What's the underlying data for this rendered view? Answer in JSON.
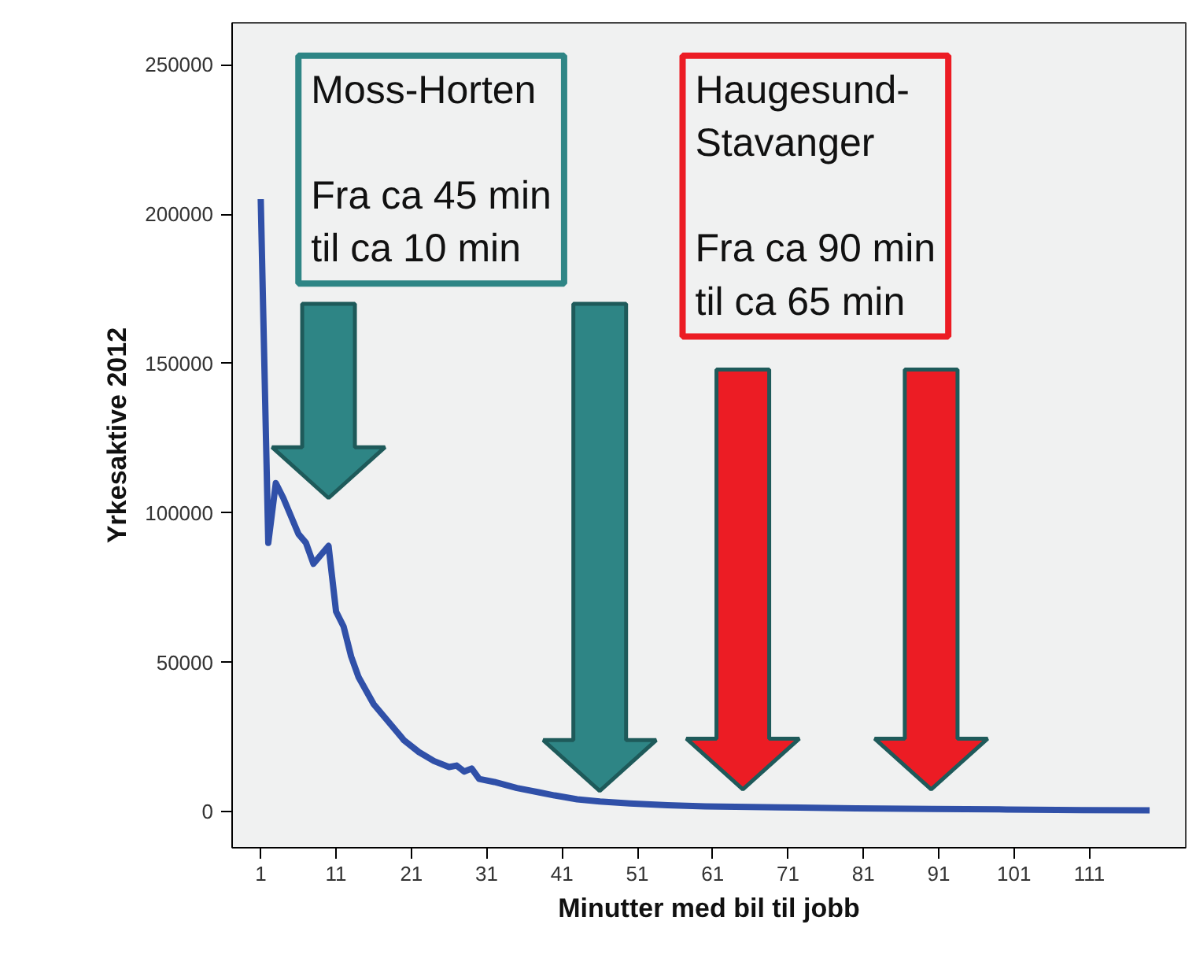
{
  "chart_data": {
    "type": "line",
    "xlabel": "Minutter med bil til jobb",
    "ylabel": "Yrkesaktive 2012",
    "x": [
      1,
      2,
      3,
      4,
      6,
      7,
      8,
      10,
      11,
      12,
      13,
      14,
      16,
      18,
      20,
      22,
      24,
      26,
      27,
      28,
      29,
      30,
      32,
      35,
      38,
      40,
      43,
      46,
      50,
      55,
      60,
      70,
      80,
      90,
      100,
      110,
      119
    ],
    "series": [
      {
        "color": "#3050a8",
        "values": [
          205000,
          90000,
          110000,
          105000,
          93000,
          90000,
          83000,
          89000,
          67000,
          62000,
          52000,
          45000,
          36000,
          30000,
          24000,
          20000,
          17000,
          15000,
          15500,
          13500,
          14500,
          11000,
          10000,
          8000,
          6500,
          5500,
          4200,
          3500,
          2800,
          2200,
          1800,
          1500,
          1200,
          1000,
          800,
          600,
          500
        ]
      }
    ],
    "xlim": [
      -2.8,
      123.8
    ],
    "ylim": [
      -12000,
      264000
    ],
    "xticks": [
      1,
      11,
      21,
      31,
      41,
      51,
      61,
      71,
      81,
      91,
      101,
      111
    ],
    "yticks": [
      0,
      50000,
      100000,
      150000,
      200000,
      250000
    ],
    "grid": false,
    "marker": "none",
    "line_style": "solid",
    "annotations": [
      "Moss-Horten\n\nFra ca 45 min\ntil ca 10 min",
      "Haugesund-\nStavanger\n\nFra ca 90 min\ntil ca 65 min"
    ]
  }
}
